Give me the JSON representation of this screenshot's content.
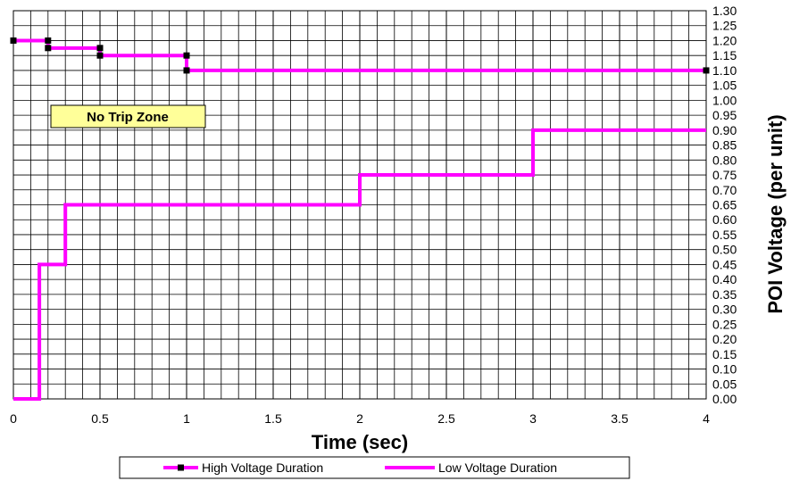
{
  "chart_data": {
    "type": "line",
    "xlabel": "Time (sec)",
    "ylabel": "POI Voltage (per unit)",
    "xlim": [
      0,
      4
    ],
    "ylim": [
      0,
      1.3
    ],
    "grid": true,
    "y_axis_position": "right",
    "legend_position": "bottom",
    "x_ticks": [
      "0",
      "0.5",
      "1",
      "1.5",
      "2",
      "2.5",
      "3",
      "3.5",
      "4"
    ],
    "y_ticks": [
      "0.00",
      "0.05",
      "0.10",
      "0.15",
      "0.20",
      "0.25",
      "0.30",
      "0.35",
      "0.40",
      "0.45",
      "0.50",
      "0.55",
      "0.60",
      "0.65",
      "0.70",
      "0.75",
      "0.80",
      "0.85",
      "0.90",
      "0.95",
      "1.00",
      "1.05",
      "1.10",
      "1.15",
      "1.20",
      "1.25",
      "1.30"
    ],
    "annotation": "No Trip Zone",
    "series": [
      {
        "name": "High Voltage Duration",
        "color": "#ff00ff",
        "marker": "square",
        "marker_color": "#000000",
        "x": [
          0,
          0.2,
          0.2,
          0.5,
          0.5,
          1,
          1,
          4
        ],
        "y": [
          1.2,
          1.2,
          1.175,
          1.175,
          1.15,
          1.15,
          1.1,
          1.1
        ]
      },
      {
        "name": "Low Voltage Duration",
        "color": "#ff00ff",
        "marker": "none",
        "x": [
          0,
          0.15,
          0.15,
          0.3,
          0.3,
          2,
          2,
          3,
          3,
          4
        ],
        "y": [
          0,
          0,
          0.45,
          0.45,
          0.65,
          0.65,
          0.75,
          0.75,
          0.9,
          0.9
        ]
      }
    ]
  }
}
